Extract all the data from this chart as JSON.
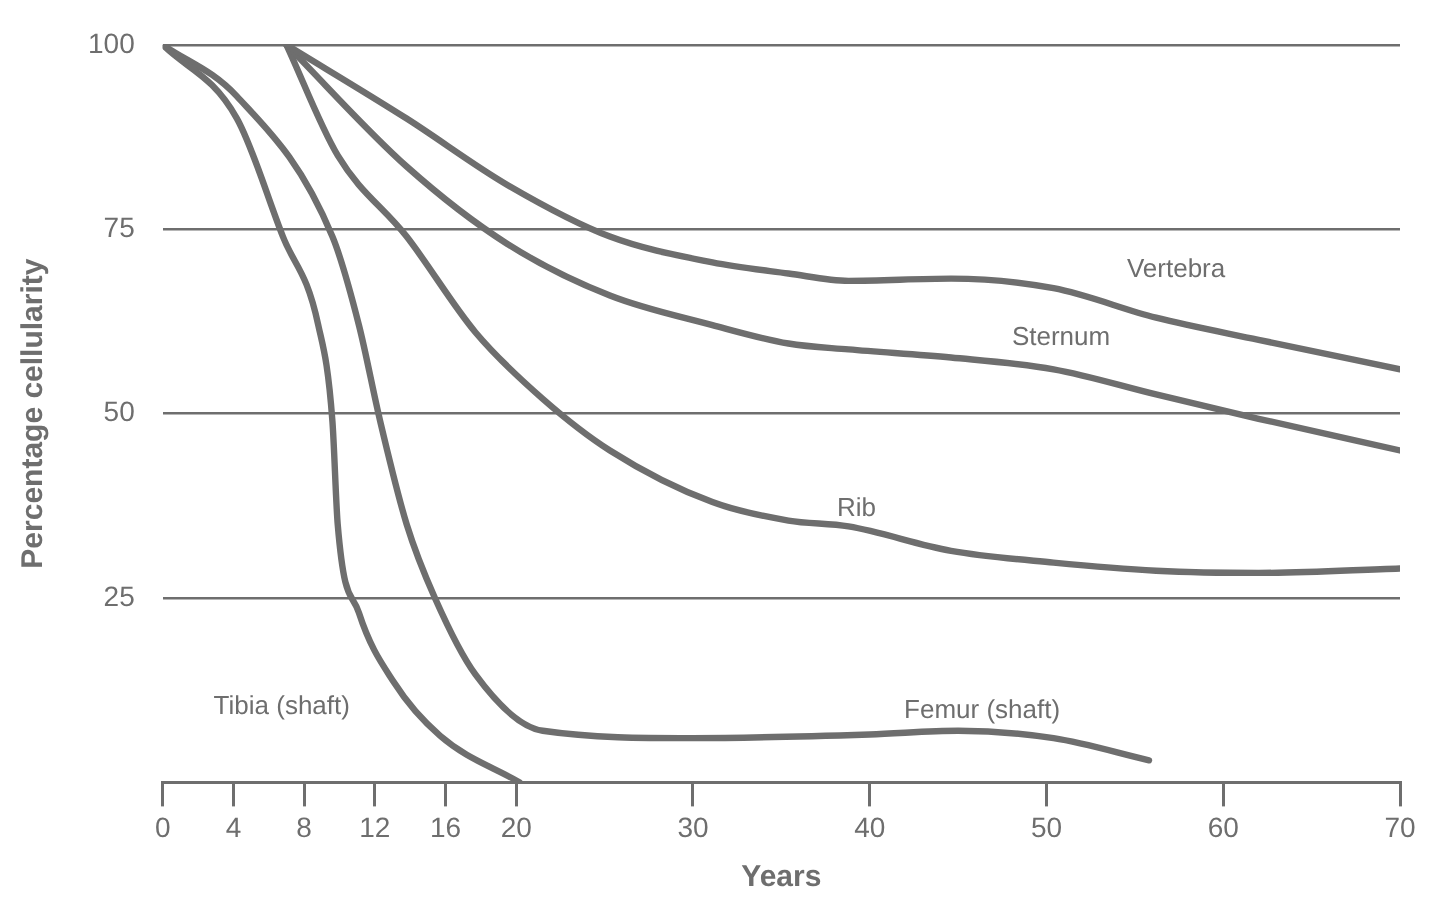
{
  "chart_data": {
    "type": "line",
    "xlabel": "Years",
    "ylabel": "Percentage cellularity",
    "xlim": [
      0,
      70
    ],
    "xticks": [
      0,
      4,
      8,
      12,
      16,
      20,
      30,
      40,
      50,
      60,
      70
    ],
    "ylim": [
      0,
      100
    ],
    "yticks": [
      25,
      50,
      75,
      100
    ],
    "grid": "y",
    "marker": "none",
    "line_style": "solid",
    "legend": false,
    "series": [
      {
        "name": "Tibia (shaft)",
        "color": "#6e6e6e",
        "x": [
          0,
          4.2,
          6.8,
          8.8,
          9.6,
          9.9,
          11.1,
          13.1,
          15.7,
          20.2
        ],
        "values": [
          100,
          90,
          74,
          62,
          49,
          35,
          23,
          13.5,
          6.3,
          0
        ]
      },
      {
        "name": "Femur (shaft)",
        "color": "#6e6e6e",
        "x": [
          0,
          4.2,
          9.6,
          11.1,
          12.3,
          13.8,
          15.4,
          17.7,
          21.5,
          30,
          40,
          45,
          50.4,
          55.8
        ],
        "values": [
          100,
          93,
          74,
          62,
          49,
          35,
          25,
          14.6,
          7,
          6,
          6.5,
          7,
          6,
          3
        ]
      },
      {
        "name": "Vertebra",
        "color": "#6e6e6e",
        "x": [
          7,
          13.8,
          19.5,
          25.3,
          31.1,
          35.4,
          38.8,
          44.6,
          50.4,
          56.2,
          62,
          70
        ],
        "values": [
          100,
          90,
          81,
          74,
          70.5,
          69,
          68,
          68.3,
          67,
          63,
          60,
          56
        ]
      },
      {
        "name": "Sternum",
        "color": "#6e6e6e",
        "x": [
          7,
          13.8,
          19.5,
          25.3,
          31.1,
          35.4,
          38.8,
          44.6,
          50.4,
          56.2,
          62,
          70
        ],
        "values": [
          100,
          83.5,
          73,
          66,
          62,
          59.5,
          58.7,
          57.6,
          56,
          52.6,
          49.3,
          45
        ]
      },
      {
        "name": "Rib",
        "color": "#6e6e6e",
        "x": [
          7,
          9.9,
          13.8,
          17.7,
          21.5,
          25.3,
          31.1,
          35.4,
          38.8,
          44.6,
          50.4,
          56.2,
          62,
          70
        ],
        "values": [
          100,
          85,
          74,
          61,
          52,
          45,
          38,
          35.5,
          34.7,
          31.4,
          29.8,
          28.7,
          28.4,
          29
        ]
      }
    ]
  }
}
